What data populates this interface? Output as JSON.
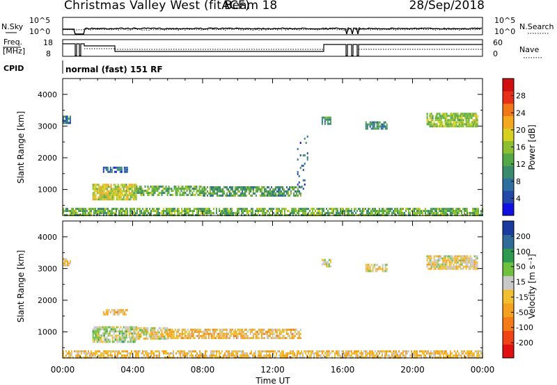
{
  "header": {
    "station": "Christmas Valley West (fitACF)",
    "beam": "Beam 18",
    "date": "28/Sep/2018"
  },
  "noise_panel": {
    "left_label": "N.Sky",
    "left_ticks": [
      "10^5",
      "10^0"
    ],
    "right_label": "N.Search",
    "right_ticks": [
      "10^5",
      "10^0"
    ]
  },
  "freq_panel": {
    "left_label_line1": "Freq.",
    "left_label_line2": "[MHz]",
    "left_ticks": [
      "18",
      "8"
    ],
    "right_label": "Nave",
    "right_ticks": [
      "60",
      "0"
    ]
  },
  "cpid": {
    "label": "CPID",
    "mode": "normal (fast) 151 RF"
  },
  "x_axis": {
    "label": "Time UT",
    "ticks": [
      "00:00",
      "04:00",
      "08:00",
      "12:00",
      "16:00",
      "20:00",
      "00:00"
    ]
  },
  "colors": {
    "power": [
      "#1010e0",
      "#2448a8",
      "#2f6fa0",
      "#3a8a6e",
      "#54a848",
      "#8cc030",
      "#d8d020",
      "#f4a820",
      "#f07818",
      "#e83018",
      "#d01010"
    ],
    "velocity": [
      "#e01010",
      "#f04418",
      "#f47c18",
      "#f4a020",
      "#f0c030",
      "#c8c8c8",
      "#70c040",
      "#2e9a50",
      "#2f6a98",
      "#1a3aa0"
    ]
  },
  "chart_data": [
    {
      "type": "heatmap",
      "title": "",
      "xlabel": "Time UT",
      "ylabel": "Slant Range [km]",
      "xlim": [
        0,
        24
      ],
      "ylim": [
        180,
        4500
      ],
      "yticks": [
        1000,
        2000,
        3000,
        4000
      ],
      "grid": false,
      "colorbar": {
        "label": "Power [dB]",
        "ticks": [
          "4",
          "8",
          "12",
          "16",
          "20",
          "24",
          "28"
        ],
        "range": [
          0,
          30
        ]
      },
      "patches": [
        {
          "t0": 0.0,
          "t1": 24.0,
          "r0": 200,
          "r1": 420,
          "value": 13,
          "density": 0.75
        },
        {
          "t0": 1.7,
          "t1": 4.2,
          "r0": 700,
          "r1": 1180,
          "value": 17,
          "density": 0.85
        },
        {
          "t0": 4.2,
          "t1": 8.0,
          "r0": 800,
          "r1": 1120,
          "value": 13,
          "density": 0.75
        },
        {
          "t0": 8.0,
          "t1": 13.6,
          "r0": 830,
          "r1": 1100,
          "value": 11,
          "density": 0.7
        },
        {
          "t0": 2.3,
          "t1": 3.7,
          "r0": 1530,
          "r1": 1720,
          "value": 6,
          "density": 0.7
        },
        {
          "t0": 14.8,
          "t1": 15.3,
          "r0": 3050,
          "r1": 3300,
          "value": 10,
          "density": 0.7
        },
        {
          "t0": 17.3,
          "t1": 18.5,
          "r0": 2950,
          "r1": 3150,
          "value": 9,
          "density": 0.7
        },
        {
          "t0": 20.8,
          "t1": 23.7,
          "r0": 3000,
          "r1": 3420,
          "value": 15,
          "density": 0.85
        },
        {
          "t0": 0.0,
          "t1": 0.4,
          "r0": 3100,
          "r1": 3330,
          "value": 8,
          "density": 0.8
        },
        {
          "t0": 13.4,
          "t1": 14.0,
          "r0": 1000,
          "r1": 2700,
          "value": 6,
          "density": 0.15
        }
      ]
    },
    {
      "type": "heatmap",
      "title": "",
      "xlabel": "Time UT",
      "ylabel": "Slant Range [km]",
      "xlim": [
        0,
        24
      ],
      "ylim": [
        180,
        4500
      ],
      "yticks": [
        1000,
        2000,
        3000,
        4000
      ],
      "grid": false,
      "colorbar": {
        "label": "Velocity [m s⁻¹]",
        "ticks": [
          "-200",
          "-100",
          "-50",
          "-15",
          "15",
          "50",
          "100",
          "200"
        ],
        "range": [
          -250,
          250
        ]
      },
      "patches": [
        {
          "t0": 0.0,
          "t1": 24.0,
          "r0": 200,
          "r1": 420,
          "value": -30,
          "density": 0.7
        },
        {
          "t0": 1.7,
          "t1": 4.2,
          "r0": 700,
          "r1": 1180,
          "value": 40,
          "density": 0.85
        },
        {
          "t0": 4.2,
          "t1": 6.0,
          "r0": 800,
          "r1": 1150,
          "value": 0,
          "density": 0.8
        },
        {
          "t0": 6.0,
          "t1": 13.6,
          "r0": 830,
          "r1": 1100,
          "value": -40,
          "density": 0.75
        },
        {
          "t0": 2.3,
          "t1": 3.7,
          "r0": 1530,
          "r1": 1720,
          "value": -40,
          "density": 0.7
        },
        {
          "t0": 14.8,
          "t1": 15.3,
          "r0": 3050,
          "r1": 3300,
          "value": 30,
          "density": 0.7
        },
        {
          "t0": 17.3,
          "t1": 18.5,
          "r0": 2950,
          "r1": 3150,
          "value": 0,
          "density": 0.7
        },
        {
          "t0": 20.8,
          "t1": 23.7,
          "r0": 3000,
          "r1": 3420,
          "value": 0,
          "density": 0.85
        },
        {
          "t0": 0.0,
          "t1": 0.4,
          "r0": 3100,
          "r1": 3330,
          "value": -30,
          "density": 0.8
        }
      ]
    }
  ]
}
